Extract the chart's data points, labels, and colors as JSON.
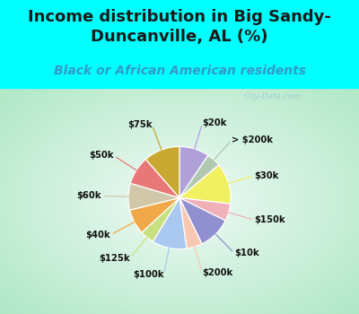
{
  "title": "Income distribution in Big Sandy-\nDuncanville, AL (%)",
  "subtitle": "Black or African American residents",
  "labels": [
    "$20k",
    "> $200k",
    "$30k",
    "$150k",
    "$10k",
    "$200k",
    "$100k",
    "$125k",
    "$40k",
    "$60k",
    "$50k",
    "$75k"
  ],
  "sizes": [
    9.5,
    4.5,
    13.0,
    5.5,
    10.5,
    5.0,
    11.0,
    4.5,
    8.0,
    8.5,
    9.0,
    11.5
  ],
  "colors": [
    "#b0a0d8",
    "#b0c8b0",
    "#f0f060",
    "#f0b0b8",
    "#9090d0",
    "#f8c8b0",
    "#a8c8f0",
    "#c8e080",
    "#f0a848",
    "#d0c8a8",
    "#e87878",
    "#c8a830"
  ],
  "background_color": "#00ffff",
  "title_fontsize": 13,
  "subtitle_fontsize": 10,
  "watermark": "City-Data.com",
  "title_color": "#1a1a1a",
  "subtitle_color": "#3399cc"
}
